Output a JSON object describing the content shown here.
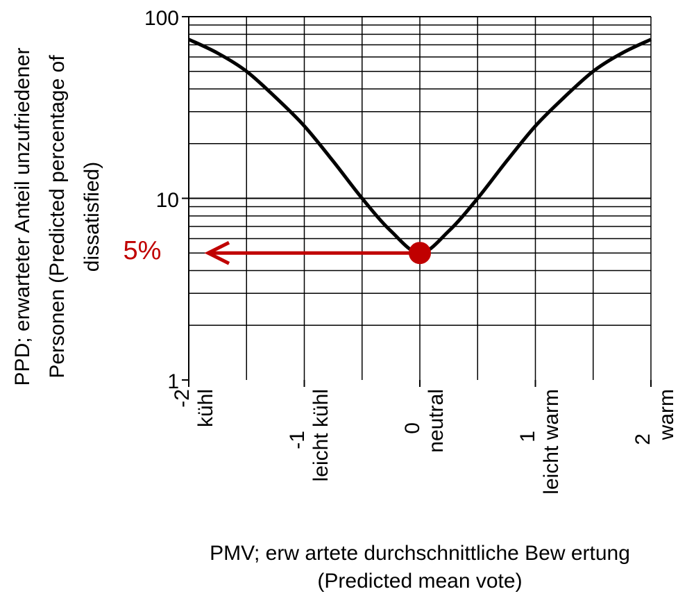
{
  "chart_data": {
    "type": "line",
    "title": "",
    "xlabel": "PMV; erw artete durchschnittliche Bew ertung",
    "xlabel_sub": "(Predicted mean vote)",
    "ylabel_lines": [
      "PPD; erwarteter Anteil unzufriedener",
      "Personen (Predicted percentage of",
      "dissatisfied)"
    ],
    "y_scale": "log",
    "ylim": [
      1,
      100
    ],
    "xlim": [
      -2,
      2
    ],
    "grid": true,
    "y_ticks": [
      {
        "value": 1,
        "label": "1"
      },
      {
        "value": 10,
        "label": "10"
      },
      {
        "value": 100,
        "label": "100"
      }
    ],
    "x_ticks": [
      {
        "value": -2,
        "label": "-2",
        "word": "kühl"
      },
      {
        "value": -1,
        "label": "-1",
        "word": "leicht kühl"
      },
      {
        "value": 0,
        "label": "0",
        "word": "neutral"
      },
      {
        "value": 1,
        "label": "1",
        "word": "leicht warm"
      },
      {
        "value": 2,
        "label": "2",
        "word": "warm"
      }
    ],
    "x": [
      -2,
      -1.75,
      -1.5,
      -1.25,
      -1.0,
      -0.75,
      -0.5,
      -0.25,
      0,
      0.25,
      0.5,
      0.75,
      1.0,
      1.25,
      1.5,
      1.75,
      2.0
    ],
    "values": [
      75,
      63,
      50,
      36,
      25,
      16,
      10,
      6.6,
      5,
      6.6,
      10,
      16,
      25,
      36,
      50,
      63,
      75
    ],
    "annotation": {
      "label": "5%",
      "x": 0,
      "y": 5,
      "color": "#c00000"
    },
    "line_color": "#000000"
  }
}
